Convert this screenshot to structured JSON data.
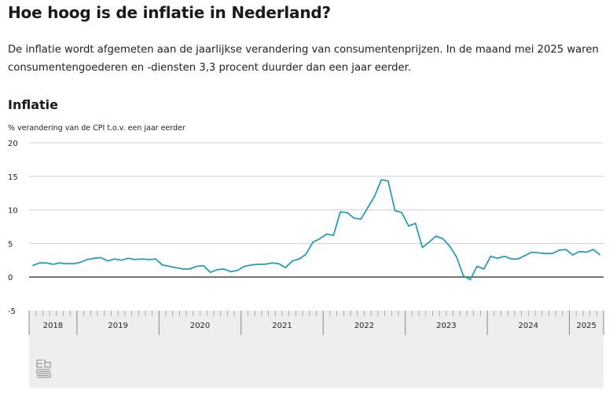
{
  "page": {
    "title": "Hoe hoog is de inflatie in Nederland?",
    "intro": "De inflatie wordt afgemeten aan de jaarlijkse verandering van consumentenprijzen. In de maand mei 2025 waren consumentengoederen en -diensten 3,3 procent duurder dan een jaar eerder."
  },
  "logo": {
    "text": "cbs"
  },
  "chart_data": {
    "type": "line",
    "title": "Inflatie",
    "ylabel": "% verandering van de CPI t.o.v. een jaar eerder",
    "xlabel": "",
    "ylim": [
      -5,
      20
    ],
    "yticks": [
      20,
      15,
      10,
      5,
      0,
      -5
    ],
    "grid": true,
    "line_color": "#2a9bb5",
    "year_labels": [
      "2018",
      "2019",
      "2020",
      "2021",
      "2022",
      "2023",
      "2024",
      "2025"
    ],
    "year_months": [
      7,
      12,
      12,
      12,
      12,
      12,
      12,
      5
    ],
    "x_start": "2018-06",
    "x_end": "2025-05",
    "values": [
      1.7,
      2.1,
      2.1,
      1.9,
      2.1,
      2.0,
      2.0,
      2.2,
      2.6,
      2.8,
      2.9,
      2.4,
      2.7,
      2.5,
      2.8,
      2.6,
      2.7,
      2.6,
      2.7,
      1.8,
      1.6,
      1.4,
      1.2,
      1.2,
      1.6,
      1.7,
      0.7,
      1.1,
      1.2,
      0.8,
      1.0,
      1.6,
      1.8,
      1.9,
      1.9,
      2.1,
      2.0,
      1.4,
      2.4,
      2.7,
      3.4,
      5.2,
      5.7,
      6.4,
      6.2,
      9.7,
      9.6,
      8.8,
      8.6,
      10.3,
      12.0,
      14.5,
      14.3,
      9.9,
      9.6,
      7.6,
      8.0,
      4.4,
      5.2,
      6.1,
      5.7,
      4.6,
      3.0,
      0.2,
      -0.4,
      1.6,
      1.2,
      3.1,
      2.8,
      3.1,
      2.7,
      2.7,
      3.2,
      3.7,
      3.6,
      3.5,
      3.5,
      4.0,
      4.1,
      3.3,
      3.8,
      3.7,
      4.1,
      3.3
    ]
  }
}
